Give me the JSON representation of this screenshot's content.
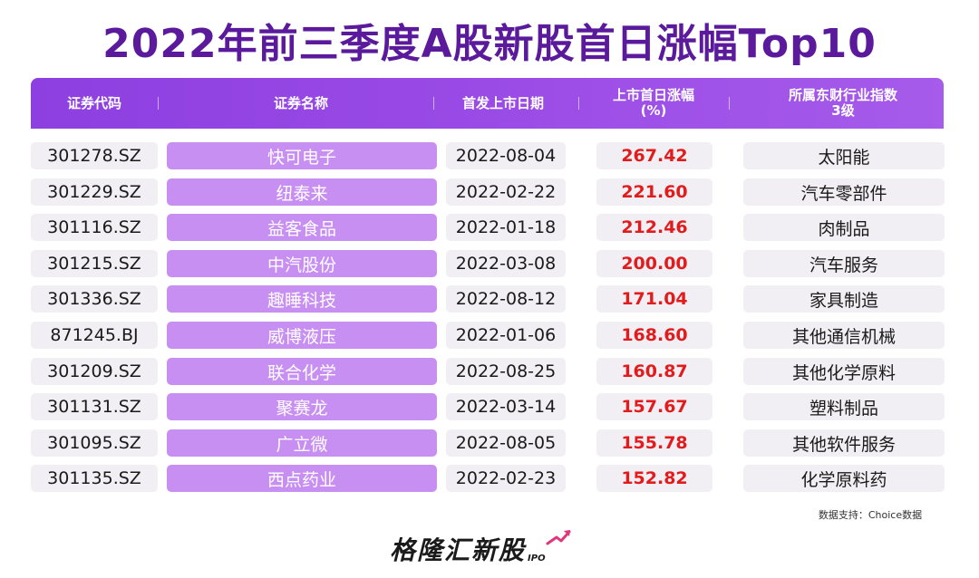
{
  "title": "2022年前三季度A股新股首日涨幅Top10",
  "headers": {
    "code": "证券代码",
    "name": "证券名称",
    "date": "首发上市日期",
    "pct_line1": "上市首日涨幅",
    "pct_line2": "(%)",
    "industry_line1": "所属东财行业指数",
    "industry_line2": "3级"
  },
  "rows": [
    {
      "code": "301278.SZ",
      "name": "快可电子",
      "date": "2022-08-04",
      "pct": "267.42",
      "industry": "太阳能"
    },
    {
      "code": "301229.SZ",
      "name": "纽泰来",
      "date": "2022-02-22",
      "pct": "221.60",
      "industry": "汽车零部件"
    },
    {
      "code": "301116.SZ",
      "name": "益客食品",
      "date": "2022-01-18",
      "pct": "212.46",
      "industry": "肉制品"
    },
    {
      "code": "301215.SZ",
      "name": "中汽股份",
      "date": "2022-03-08",
      "pct": "200.00",
      "industry": "汽车服务"
    },
    {
      "code": "301336.SZ",
      "name": "趣睡科技",
      "date": "2022-08-12",
      "pct": "171.04",
      "industry": "家具制造"
    },
    {
      "code": "871245.BJ",
      "name": "威博液压",
      "date": "2022-01-06",
      "pct": "168.60",
      "industry": "其他通信机械"
    },
    {
      "code": "301209.SZ",
      "name": "联合化学",
      "date": "2022-08-25",
      "pct": "160.87",
      "industry": "其他化学原料"
    },
    {
      "code": "301131.SZ",
      "name": "聚赛龙",
      "date": "2022-03-14",
      "pct": "157.67",
      "industry": "塑料制品"
    },
    {
      "code": "301095.SZ",
      "name": "广立微",
      "date": "2022-08-05",
      "pct": "155.78",
      "industry": "其他软件服务"
    },
    {
      "code": "301135.SZ",
      "name": "西点药业",
      "date": "2022-02-23",
      "pct": "152.82",
      "industry": "化学原料药"
    }
  ],
  "source": "数据支持：Choice数据",
  "logo": {
    "text": "格隆汇新股",
    "sub": "IPO"
  },
  "colors": {
    "title": "#5b1a9c",
    "header": "#9a4be6",
    "name_cell": "#c88ff3",
    "pct_text": "#e21c1c",
    "cell_bg": "#f1eff4"
  }
}
